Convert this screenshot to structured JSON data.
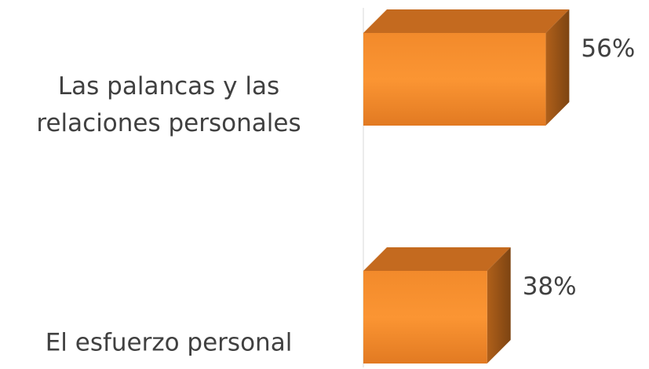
{
  "chart_data": {
    "type": "bar3d",
    "categories": [
      "Las palancas y las relaciones personales",
      "El esfuerzo personal"
    ],
    "values": [
      56,
      38
    ],
    "value_labels": [
      "56%",
      "38%"
    ],
    "color": "#f28a2b"
  }
}
